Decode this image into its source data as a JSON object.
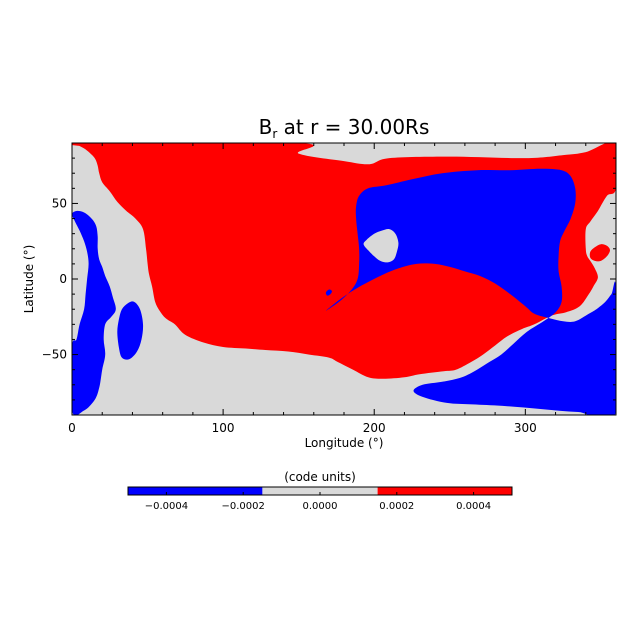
{
  "chart_data": {
    "type": "heatmap",
    "title": {
      "main": "B",
      "sub": "r",
      "rest": " at r = 30.00Rs"
    },
    "xlabel": "Longitude (°)",
    "ylabel": "Latitude (°)",
    "xlim": [
      0,
      360
    ],
    "ylim": [
      -90,
      90
    ],
    "xticks": [
      0,
      100,
      200,
      300
    ],
    "yticks": [
      -50,
      0,
      50
    ],
    "xtick_labels": [
      "0",
      "100",
      "200",
      "300"
    ],
    "ytick_labels": [
      "−50",
      "0",
      "50"
    ],
    "colorbar": {
      "title": "(code units)",
      "range": [
        -0.0005,
        0.0005
      ],
      "levels": [
        {
          "from": -0.0005,
          "to": -0.00015,
          "color": "#0000ff"
        },
        {
          "from": -0.00015,
          "to": 0.00015,
          "color": "#d9d9d9"
        },
        {
          "from": 0.00015,
          "to": 0.0005,
          "color": "#ff0000"
        }
      ],
      "ticks": [
        -0.0004,
        -0.0002,
        0.0,
        0.0002,
        0.0004
      ],
      "tick_labels": [
        "−0.0004",
        "−0.0002",
        "0.0000",
        "0.0002",
        "0.0004"
      ]
    },
    "background_color": "#d9d9d9",
    "regions": [
      {
        "name": "red-main",
        "color": "#ff0000",
        "points": [
          [
            0,
            90
          ],
          [
            150,
            90
          ],
          [
            150,
            83
          ],
          [
            180,
            78
          ],
          [
            197,
            76
          ],
          [
            210,
            80
          ],
          [
            250,
            81
          ],
          [
            300,
            80
          ],
          [
            325,
            82
          ],
          [
            340,
            84
          ],
          [
            360,
            90
          ],
          [
            360,
            60
          ],
          [
            354,
            55
          ],
          [
            348,
            45
          ],
          [
            343,
            38
          ],
          [
            340,
            33
          ],
          [
            340,
            20
          ],
          [
            341,
            15
          ],
          [
            343,
            12
          ],
          [
            346,
            7
          ],
          [
            348,
            1
          ],
          [
            345,
            -5
          ],
          [
            342,
            -10
          ],
          [
            336,
            -18
          ],
          [
            327,
            -22
          ],
          [
            318,
            -24
          ],
          [
            306,
            -30
          ],
          [
            298,
            -33
          ],
          [
            288,
            -38
          ],
          [
            280,
            -44
          ],
          [
            272,
            -50
          ],
          [
            264,
            -55
          ],
          [
            254,
            -60
          ],
          [
            246,
            -61
          ],
          [
            230,
            -63
          ],
          [
            220,
            -65
          ],
          [
            206,
            -66
          ],
          [
            196,
            -65
          ],
          [
            186,
            -60
          ],
          [
            176,
            -55
          ],
          [
            170,
            -52
          ],
          [
            157,
            -50
          ],
          [
            143,
            -48
          ],
          [
            128,
            -47
          ],
          [
            115,
            -46
          ],
          [
            100,
            -45
          ],
          [
            87,
            -42
          ],
          [
            75,
            -37
          ],
          [
            68,
            -30
          ],
          [
            62,
            -26
          ],
          [
            58,
            -21
          ],
          [
            55,
            -15
          ],
          [
            53,
            -5
          ],
          [
            51,
            3
          ],
          [
            50,
            10
          ],
          [
            49,
            20
          ],
          [
            47,
            33
          ],
          [
            42,
            40
          ],
          [
            36,
            45
          ],
          [
            30,
            51
          ],
          [
            25,
            58
          ],
          [
            20,
            64
          ],
          [
            18,
            70
          ],
          [
            17,
            75
          ],
          [
            15,
            80
          ],
          [
            10,
            85
          ],
          [
            5,
            88
          ],
          [
            0,
            90
          ]
        ]
      },
      {
        "name": "blue-west",
        "color": "#0000ff",
        "points": [
          [
            0,
            43
          ],
          [
            2,
            38
          ],
          [
            5,
            32
          ],
          [
            8,
            25
          ],
          [
            10,
            18
          ],
          [
            11,
            10
          ],
          [
            10,
            0
          ],
          [
            9,
            -10
          ],
          [
            8,
            -20
          ],
          [
            5,
            -30
          ],
          [
            3,
            -40
          ],
          [
            0,
            -45
          ],
          [
            0,
            -87
          ],
          [
            8,
            -87
          ],
          [
            15,
            -80
          ],
          [
            18,
            -72
          ],
          [
            20,
            -60
          ],
          [
            22,
            -50
          ],
          [
            21,
            -40
          ],
          [
            22,
            -30
          ],
          [
            26,
            -25
          ],
          [
            29,
            -20
          ],
          [
            27,
            -12
          ],
          [
            25,
            -5
          ],
          [
            22,
            2
          ],
          [
            20,
            8
          ],
          [
            18,
            13
          ],
          [
            17,
            20
          ],
          [
            17,
            28
          ],
          [
            16,
            35
          ],
          [
            13,
            40
          ],
          [
            8,
            44
          ],
          [
            3,
            45
          ],
          [
            0,
            43
          ]
        ]
      },
      {
        "name": "blue-inlet",
        "color": "#0000ff",
        "points": [
          [
            41,
            -15
          ],
          [
            45,
            -20
          ],
          [
            47,
            -30
          ],
          [
            46,
            -40
          ],
          [
            43,
            -48
          ],
          [
            38,
            -53
          ],
          [
            33,
            -52
          ],
          [
            31,
            -45
          ],
          [
            30,
            -35
          ],
          [
            31,
            -27
          ],
          [
            33,
            -20
          ],
          [
            37,
            -16
          ],
          [
            41,
            -15
          ]
        ]
      },
      {
        "name": "blue-main",
        "color": "#0000ff",
        "points": [
          [
            168,
            -21
          ],
          [
            178,
            -13
          ],
          [
            187,
            -7
          ],
          [
            196,
            -2
          ],
          [
            206,
            3
          ],
          [
            216,
            7
          ],
          [
            228,
            10
          ],
          [
            240,
            10
          ],
          [
            250,
            8
          ],
          [
            260,
            5
          ],
          [
            270,
            2
          ],
          [
            280,
            -3
          ],
          [
            290,
            -10
          ],
          [
            300,
            -18
          ],
          [
            306,
            -23
          ],
          [
            316,
            -26
          ],
          [
            325,
            -28
          ],
          [
            333,
            -28
          ],
          [
            342,
            -23
          ],
          [
            347,
            -20
          ],
          [
            353,
            -15
          ],
          [
            357,
            -10
          ],
          [
            360,
            -7
          ],
          [
            360,
            -88
          ],
          [
            335,
            -88
          ],
          [
            310,
            -86
          ],
          [
            285,
            -84
          ],
          [
            265,
            -83
          ],
          [
            248,
            -82
          ],
          [
            232,
            -78
          ],
          [
            226,
            -74
          ],
          [
            232,
            -70
          ],
          [
            245,
            -68
          ],
          [
            258,
            -65
          ],
          [
            268,
            -60
          ],
          [
            276,
            -55
          ],
          [
            284,
            -50
          ],
          [
            292,
            -43
          ],
          [
            301,
            -35
          ],
          [
            312,
            -28
          ],
          [
            320,
            -22
          ],
          [
            324,
            -15
          ],
          [
            324,
            -5
          ],
          [
            322,
            5
          ],
          [
            322,
            15
          ],
          [
            323,
            25
          ],
          [
            326,
            32
          ],
          [
            330,
            40
          ],
          [
            333,
            50
          ],
          [
            333,
            60
          ],
          [
            330,
            68
          ],
          [
            324,
            72
          ],
          [
            310,
            73
          ],
          [
            290,
            72
          ],
          [
            268,
            72
          ],
          [
            245,
            70
          ],
          [
            225,
            66
          ],
          [
            208,
            62
          ],
          [
            196,
            60
          ],
          [
            190,
            55
          ],
          [
            188,
            48
          ],
          [
            188,
            40
          ],
          [
            189,
            30
          ],
          [
            190,
            20
          ],
          [
            190,
            10
          ],
          [
            189,
            0
          ],
          [
            185,
            -7
          ],
          [
            178,
            -14
          ],
          [
            168,
            -21
          ]
        ]
      },
      {
        "name": "red-blob-mid",
        "color": "#ff0000",
        "points": [
          [
            202,
            20
          ],
          [
            205,
            17
          ],
          [
            209,
            17
          ],
          [
            212,
            20
          ],
          [
            213,
            25
          ],
          [
            212,
            28
          ],
          [
            208,
            29
          ],
          [
            204,
            28
          ],
          [
            202,
            25
          ],
          [
            202,
            20
          ]
        ]
      },
      {
        "name": "grey-ring-blob",
        "color": "#d9d9d9",
        "points": [
          [
            195,
            26
          ],
          [
            200,
            30
          ],
          [
            205,
            32
          ],
          [
            210,
            33
          ],
          [
            214,
            30
          ],
          [
            216,
            24
          ],
          [
            215,
            18
          ],
          [
            213,
            13
          ],
          [
            209,
            11
          ],
          [
            204,
            12
          ],
          [
            200,
            15
          ],
          [
            196,
            19
          ],
          [
            193,
            23
          ],
          [
            195,
            26
          ]
        ]
      },
      {
        "name": "red-blob-east",
        "color": "#ff0000",
        "points": [
          [
            343,
            18
          ],
          [
            346,
            21
          ],
          [
            350,
            23
          ],
          [
            354,
            22
          ],
          [
            356,
            19
          ],
          [
            354,
            15
          ],
          [
            350,
            12
          ],
          [
            346,
            12
          ],
          [
            343,
            14
          ],
          [
            343,
            18
          ]
        ]
      },
      {
        "name": "blue-dot",
        "color": "#0000ff",
        "points": [
          [
            168,
            -9
          ],
          [
            170,
            -7
          ],
          [
            172,
            -8
          ],
          [
            171,
            -10
          ],
          [
            169,
            -11
          ],
          [
            168,
            -9
          ]
        ]
      }
    ]
  }
}
